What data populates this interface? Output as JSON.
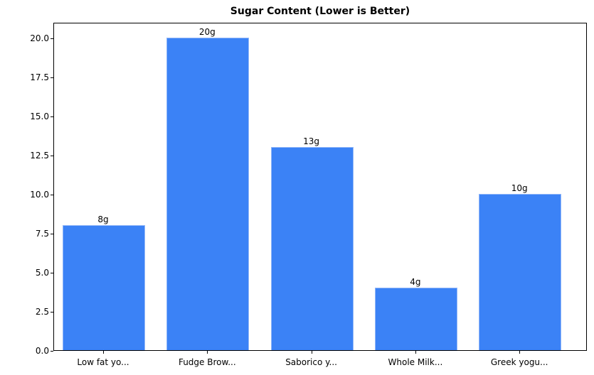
{
  "chart_data": {
    "type": "bar",
    "title": "Sugar Content (Lower is Better)",
    "xlabel": "",
    "ylabel": "",
    "categories": [
      "Low fat yo...",
      "Fudge Brow...",
      "Saborico y...",
      "Whole Milk...",
      "Greek yogu..."
    ],
    "values": [
      8,
      20,
      13,
      4,
      10
    ],
    "value_labels": [
      "8g",
      "20g",
      "13g",
      "4g",
      "10g"
    ],
    "ylim": [
      0,
      21
    ],
    "yticks": [
      0.0,
      2.5,
      5.0,
      7.5,
      10.0,
      12.5,
      15.0,
      17.5,
      20.0
    ],
    "ytick_labels": [
      "0.0",
      "2.5",
      "5.0",
      "7.5",
      "10.0",
      "12.5",
      "15.0",
      "17.5",
      "20.0"
    ],
    "grid": false,
    "legend": null,
    "bar_color": "#3B82F6"
  }
}
